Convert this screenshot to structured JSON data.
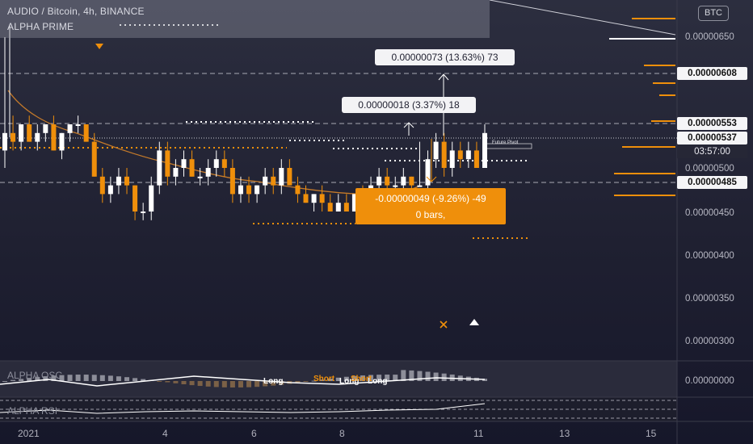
{
  "header": {
    "symbol_line": "AUDIO / Bitcoin, 4h, BINANCE",
    "indicator": "ALPHA PRIME",
    "currency_button": "BTC"
  },
  "measures": {
    "upper": "0.00000073 (13.63%) 73",
    "middle": "0.00000018 (3.37%) 18",
    "down_line1": "-0.00000049 (-9.26%) -49",
    "down_line2": "0 bars,"
  },
  "future_pivot": "Future Pivot",
  "price_axis": {
    "ticks": [
      "0.00000650",
      "0.00000500",
      "0.00000450",
      "0.00000400",
      "0.00000350",
      "0.00000300"
    ],
    "boxes": [
      "0.00000608",
      "0.00000553",
      "0.00000537",
      "0.00000485"
    ],
    "countdown": "03:57:00",
    "osc_value": "0.00000000"
  },
  "time_axis": [
    "2021",
    "4",
    "6",
    "8",
    "11",
    "13",
    "15"
  ],
  "panes": {
    "osc_label": "ALPHA OSC",
    "rsi_label": "ALPHA RSI"
  },
  "signals": [
    "Long",
    "Short",
    "Long",
    "Short",
    "Long"
  ],
  "colors": {
    "bull": "#ffffff",
    "bear": "#ef8f0b",
    "accent": "#ef8f0b",
    "background": "#1f2031"
  },
  "chart_data": {
    "type": "candlestick",
    "symbol": "AUDIO / Bitcoin",
    "interval": "4h",
    "ylim": [
      2.8e-06,
      6.8e-06
    ],
    "candles": [
      {
        "o": 5.2e-06,
        "h": 6.5e-06,
        "l": 5e-06,
        "c": 5.4e-06
      },
      {
        "o": 5.4e-06,
        "h": 5.6e-06,
        "l": 5.2e-06,
        "c": 5.3e-06
      },
      {
        "o": 5.3e-06,
        "h": 5.5e-06,
        "l": 5.2e-06,
        "c": 5.5e-06
      },
      {
        "o": 5.5e-06,
        "h": 5.6e-06,
        "l": 5.3e-06,
        "c": 5.3e-06
      },
      {
        "o": 5.3e-06,
        "h": 5.5e-06,
        "l": 5.2e-06,
        "c": 5.4e-06
      },
      {
        "o": 5.4e-06,
        "h": 5.5e-06,
        "l": 5.3e-06,
        "c": 5.5e-06
      },
      {
        "o": 5.5e-06,
        "h": 5.6e-06,
        "l": 5.2e-06,
        "c": 5.2e-06
      },
      {
        "o": 5.2e-06,
        "h": 5.4e-06,
        "l": 5.1e-06,
        "c": 5.4e-06
      },
      {
        "o": 5.4e-06,
        "h": 5.5e-06,
        "l": 5.3e-06,
        "c": 5.5e-06
      },
      {
        "o": 5.5e-06,
        "h": 5.6e-06,
        "l": 5.4e-06,
        "c": 5.5e-06
      },
      {
        "o": 5.5e-06,
        "h": 5.5e-06,
        "l": 5.3e-06,
        "c": 5.3e-06
      },
      {
        "o": 5.3e-06,
        "h": 5.4e-06,
        "l": 4.9e-06,
        "c": 4.9e-06
      },
      {
        "o": 4.9e-06,
        "h": 5e-06,
        "l": 4.6e-06,
        "c": 4.7e-06
      },
      {
        "o": 4.7e-06,
        "h": 4.9e-06,
        "l": 4.6e-06,
        "c": 4.8e-06
      },
      {
        "o": 4.8e-06,
        "h": 5e-06,
        "l": 4.7e-06,
        "c": 4.9e-06
      },
      {
        "o": 4.9e-06,
        "h": 5e-06,
        "l": 4.7e-06,
        "c": 4.8e-06
      },
      {
        "o": 4.8e-06,
        "h": 4.8e-06,
        "l": 4.4e-06,
        "c": 4.5e-06
      },
      {
        "o": 4.5e-06,
        "h": 4.6e-06,
        "l": 4.4e-06,
        "c": 4.5e-06
      },
      {
        "o": 4.5e-06,
        "h": 4.9e-06,
        "l": 4.4e-06,
        "c": 4.8e-06
      },
      {
        "o": 4.8e-06,
        "h": 5.3e-06,
        "l": 4.7e-06,
        "c": 5.2e-06
      },
      {
        "o": 5.2e-06,
        "h": 5.3e-06,
        "l": 4.8e-06,
        "c": 4.9e-06
      },
      {
        "o": 4.9e-06,
        "h": 5.1e-06,
        "l": 4.8e-06,
        "c": 5e-06
      },
      {
        "o": 5e-06,
        "h": 5.2e-06,
        "l": 4.9e-06,
        "c": 5.1e-06
      },
      {
        "o": 5.1e-06,
        "h": 5.2e-06,
        "l": 4.9e-06,
        "c": 4.9e-06
      },
      {
        "o": 4.9e-06,
        "h": 5e-06,
        "l": 4.8e-06,
        "c": 4.9e-06
      },
      {
        "o": 4.9e-06,
        "h": 5.1e-06,
        "l": 4.8e-06,
        "c": 5e-06
      },
      {
        "o": 5e-06,
        "h": 5.2e-06,
        "l": 4.9e-06,
        "c": 5.1e-06
      },
      {
        "o": 5.1e-06,
        "h": 5.2e-06,
        "l": 4.9e-06,
        "c": 5e-06
      },
      {
        "o": 5e-06,
        "h": 5.1e-06,
        "l": 4.6e-06,
        "c": 4.7e-06
      },
      {
        "o": 4.7e-06,
        "h": 4.9e-06,
        "l": 4.6e-06,
        "c": 4.8e-06
      },
      {
        "o": 4.8e-06,
        "h": 4.9e-06,
        "l": 4.6e-06,
        "c": 4.7e-06
      },
      {
        "o": 4.7e-06,
        "h": 4.8e-06,
        "l": 4.6e-06,
        "c": 4.8e-06
      },
      {
        "o": 4.8e-06,
        "h": 5e-06,
        "l": 4.7e-06,
        "c": 4.9e-06
      },
      {
        "o": 4.9e-06,
        "h": 5e-06,
        "l": 4.7e-06,
        "c": 4.8e-06
      },
      {
        "o": 4.8e-06,
        "h": 5.1e-06,
        "l": 4.7e-06,
        "c": 5e-06
      },
      {
        "o": 5e-06,
        "h": 5.1e-06,
        "l": 4.8e-06,
        "c": 4.8e-06
      },
      {
        "o": 4.8e-06,
        "h": 4.9e-06,
        "l": 4.6e-06,
        "c": 4.7e-06
      },
      {
        "o": 4.7e-06,
        "h": 4.8e-06,
        "l": 4.6e-06,
        "c": 4.6e-06
      },
      {
        "o": 4.6e-06,
        "h": 4.7e-06,
        "l": 4.5e-06,
        "c": 4.7e-06
      },
      {
        "o": 4.7e-06,
        "h": 4.8e-06,
        "l": 4.5e-06,
        "c": 4.6e-06
      },
      {
        "o": 4.6e-06,
        "h": 4.7e-06,
        "l": 4.5e-06,
        "c": 4.5e-06
      },
      {
        "o": 4.5e-06,
        "h": 4.7e-06,
        "l": 4.5e-06,
        "c": 4.6e-06
      },
      {
        "o": 4.6e-06,
        "h": 4.7e-06,
        "l": 4.5e-06,
        "c": 4.5e-06
      },
      {
        "o": 4.5e-06,
        "h": 4.7e-06,
        "l": 4.5e-06,
        "c": 4.7e-06
      },
      {
        "o": 4.7e-06,
        "h": 4.8e-06,
        "l": 4.5e-06,
        "c": 4.6e-06
      },
      {
        "o": 4.6e-06,
        "h": 4.9e-06,
        "l": 4.5e-06,
        "c": 4.8e-06
      },
      {
        "o": 4.8e-06,
        "h": 5e-06,
        "l": 4.7e-06,
        "c": 4.9e-06
      },
      {
        "o": 4.9e-06,
        "h": 5e-06,
        "l": 4.7e-06,
        "c": 4.8e-06
      },
      {
        "o": 4.8e-06,
        "h": 4.9e-06,
        "l": 4.7e-06,
        "c": 4.8e-06
      },
      {
        "o": 4.8e-06,
        "h": 5e-06,
        "l": 4.7e-06,
        "c": 4.9e-06
      },
      {
        "o": 4.9e-06,
        "h": 4.9e-06,
        "l": 4.7e-06,
        "c": 4.8e-06
      },
      {
        "o": 4.8e-06,
        "h": 5.3e-06,
        "l": 4.8e-06,
        "c": 4.8e-06
      },
      {
        "o": 4.8e-06,
        "h": 5.2e-06,
        "l": 4.7e-06,
        "c": 5.1e-06
      },
      {
        "o": 5.1e-06,
        "h": 5.4e-06,
        "l": 5e-06,
        "c": 5.3e-06
      },
      {
        "o": 5.3e-06,
        "h": 5.4e-06,
        "l": 4.9e-06,
        "c": 5e-06
      },
      {
        "o": 5e-06,
        "h": 5.3e-06,
        "l": 4.9e-06,
        "c": 5.2e-06
      },
      {
        "o": 5.2e-06,
        "h": 5.3e-06,
        "l": 5e-06,
        "c": 5.1e-06
      },
      {
        "o": 5.1e-06,
        "h": 5.3e-06,
        "l": 5e-06,
        "c": 5.2e-06
      },
      {
        "o": 5.2e-06,
        "h": 5.3e-06,
        "l": 5e-06,
        "c": 5e-06
      },
      {
        "o": 5e-06,
        "h": 5.5e-06,
        "l": 5e-06,
        "c": 5.4e-06
      }
    ]
  }
}
